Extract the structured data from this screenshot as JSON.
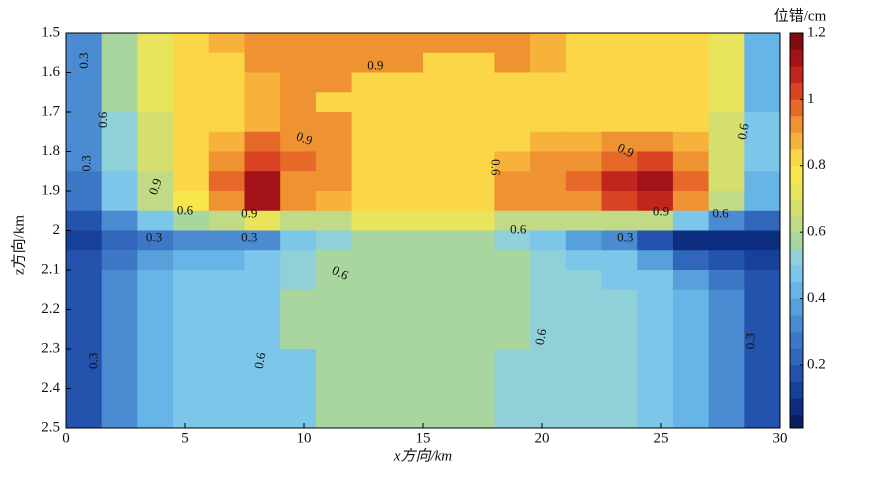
{
  "chart_data": {
    "type": "contour",
    "xlabel": "x方向/km",
    "ylabel": "z方向/km",
    "colorbar_label": "位错/cm",
    "xlim": [
      0,
      30
    ],
    "xticks": [
      0,
      5,
      10,
      15,
      20,
      25,
      30
    ],
    "ylim": [
      1.5,
      2.5
    ],
    "yticks": [
      1.5,
      1.6,
      1.7,
      1.8,
      1.9,
      2,
      2.1,
      2.2,
      2.3,
      2.4,
      2.5
    ],
    "y_inverted": true,
    "clim": [
      0.01,
      1.2
    ],
    "cticks": [
      0.2,
      0.4,
      0.6,
      0.8,
      1,
      1.2
    ],
    "levels": [
      0,
      0.05,
      0.1,
      0.15,
      0.2,
      0.25,
      0.3,
      0.35,
      0.4,
      0.45,
      0.5,
      0.55,
      0.6,
      0.65,
      0.7,
      0.75,
      0.8,
      0.85,
      0.9,
      0.95,
      1,
      1.05,
      1.1,
      1.15,
      1.2
    ],
    "colors": [
      "#08215e",
      "#0c2d80",
      "#17409a",
      "#2453ad",
      "#3266bb",
      "#3d78c6",
      "#4a8bd1",
      "#58a0dc",
      "#67b5e6",
      "#7cc6ea",
      "#90d0d8",
      "#a9d59e",
      "#c0da86",
      "#d4df6e",
      "#e8e45c",
      "#f8e64c",
      "#fbd646",
      "#f7b23c",
      "#ef9232",
      "#e6692a",
      "#d84323",
      "#c2251d",
      "#a31218",
      "#800c12"
    ],
    "x": [
      0.75,
      2.25,
      3.75,
      5.25,
      6.75,
      8.25,
      9.75,
      11.25,
      12.75,
      14.25,
      15.75,
      17.25,
      18.75,
      20.25,
      21.75,
      23.25,
      24.75,
      26.25,
      27.75,
      29.25
    ],
    "y": [
      1.525,
      1.575,
      1.625,
      1.675,
      1.725,
      1.775,
      1.825,
      1.875,
      1.925,
      1.975,
      2.025,
      2.075,
      2.125,
      2.175,
      2.225,
      2.275,
      2.325,
      2.375,
      2.425,
      2.475
    ],
    "z": [
      [
        0.3,
        0.55,
        0.72,
        0.82,
        0.88,
        0.92,
        0.92,
        0.92,
        0.92,
        0.92,
        0.92,
        0.92,
        0.92,
        0.88,
        0.82,
        0.82,
        0.82,
        0.8,
        0.7,
        0.4
      ],
      [
        0.3,
        0.55,
        0.72,
        0.82,
        0.82,
        0.92,
        0.92,
        0.92,
        0.92,
        0.92,
        0.82,
        0.82,
        0.92,
        0.88,
        0.82,
        0.82,
        0.82,
        0.8,
        0.7,
        0.4
      ],
      [
        0.3,
        0.55,
        0.72,
        0.82,
        0.82,
        0.88,
        0.92,
        0.92,
        0.82,
        0.82,
        0.82,
        0.82,
        0.82,
        0.82,
        0.82,
        0.82,
        0.82,
        0.8,
        0.7,
        0.4
      ],
      [
        0.3,
        0.55,
        0.72,
        0.82,
        0.82,
        0.88,
        0.92,
        0.82,
        0.82,
        0.82,
        0.82,
        0.82,
        0.82,
        0.82,
        0.82,
        0.82,
        0.82,
        0.8,
        0.7,
        0.4
      ],
      [
        0.3,
        0.5,
        0.68,
        0.82,
        0.82,
        0.88,
        0.92,
        0.92,
        0.82,
        0.82,
        0.82,
        0.82,
        0.82,
        0.82,
        0.82,
        0.82,
        0.82,
        0.8,
        0.68,
        0.45
      ],
      [
        0.3,
        0.5,
        0.68,
        0.8,
        0.88,
        0.95,
        0.92,
        0.92,
        0.82,
        0.82,
        0.82,
        0.82,
        0.82,
        0.88,
        0.88,
        0.92,
        0.92,
        0.85,
        0.68,
        0.45
      ],
      [
        0.3,
        0.5,
        0.65,
        0.82,
        0.92,
        1.02,
        0.95,
        0.92,
        0.82,
        0.82,
        0.82,
        0.82,
        0.88,
        0.92,
        0.92,
        0.98,
        1.02,
        0.92,
        0.65,
        0.45
      ],
      [
        0.28,
        0.48,
        0.62,
        0.8,
        0.95,
        1.1,
        0.92,
        0.92,
        0.82,
        0.82,
        0.82,
        0.82,
        0.92,
        0.92,
        0.95,
        1.08,
        1.1,
        0.95,
        0.65,
        0.42
      ],
      [
        0.25,
        0.45,
        0.6,
        0.75,
        0.9,
        1.12,
        0.9,
        0.88,
        0.82,
        0.82,
        0.82,
        0.82,
        0.9,
        0.9,
        0.92,
        1.02,
        1.05,
        0.9,
        0.62,
        0.4
      ],
      [
        0.15,
        0.3,
        0.45,
        0.55,
        0.62,
        0.7,
        0.62,
        0.6,
        0.7,
        0.72,
        0.72,
        0.7,
        0.62,
        0.6,
        0.62,
        0.62,
        0.6,
        0.45,
        0.3,
        0.2
      ],
      [
        0.1,
        0.2,
        0.25,
        0.3,
        0.32,
        0.32,
        0.45,
        0.5,
        0.55,
        0.55,
        0.55,
        0.55,
        0.5,
        0.45,
        0.38,
        0.3,
        0.15,
        0.05,
        0.05,
        0.05
      ],
      [
        0.15,
        0.28,
        0.38,
        0.42,
        0.42,
        0.45,
        0.5,
        0.55,
        0.57,
        0.57,
        0.57,
        0.57,
        0.55,
        0.52,
        0.48,
        0.45,
        0.35,
        0.22,
        0.15,
        0.1
      ],
      [
        0.15,
        0.3,
        0.4,
        0.45,
        0.45,
        0.47,
        0.53,
        0.57,
        0.57,
        0.57,
        0.57,
        0.57,
        0.57,
        0.52,
        0.52,
        0.48,
        0.45,
        0.38,
        0.28,
        0.15
      ],
      [
        0.15,
        0.3,
        0.42,
        0.47,
        0.47,
        0.47,
        0.57,
        0.57,
        0.57,
        0.57,
        0.57,
        0.57,
        0.57,
        0.52,
        0.52,
        0.52,
        0.47,
        0.42,
        0.3,
        0.15
      ],
      [
        0.15,
        0.3,
        0.42,
        0.47,
        0.47,
        0.47,
        0.57,
        0.57,
        0.57,
        0.57,
        0.57,
        0.57,
        0.57,
        0.52,
        0.52,
        0.52,
        0.47,
        0.42,
        0.3,
        0.15
      ],
      [
        0.15,
        0.3,
        0.42,
        0.47,
        0.47,
        0.47,
        0.57,
        0.57,
        0.57,
        0.57,
        0.57,
        0.57,
        0.57,
        0.52,
        0.52,
        0.52,
        0.47,
        0.42,
        0.3,
        0.15
      ],
      [
        0.15,
        0.3,
        0.42,
        0.47,
        0.47,
        0.47,
        0.47,
        0.57,
        0.57,
        0.57,
        0.57,
        0.57,
        0.52,
        0.52,
        0.52,
        0.52,
        0.47,
        0.42,
        0.3,
        0.15
      ],
      [
        0.15,
        0.3,
        0.42,
        0.47,
        0.47,
        0.47,
        0.47,
        0.57,
        0.57,
        0.57,
        0.57,
        0.57,
        0.52,
        0.52,
        0.52,
        0.52,
        0.47,
        0.42,
        0.3,
        0.15
      ],
      [
        0.15,
        0.3,
        0.42,
        0.47,
        0.47,
        0.47,
        0.47,
        0.57,
        0.57,
        0.57,
        0.57,
        0.57,
        0.52,
        0.52,
        0.52,
        0.52,
        0.47,
        0.42,
        0.3,
        0.15
      ],
      [
        0.15,
        0.3,
        0.42,
        0.47,
        0.47,
        0.47,
        0.47,
        0.57,
        0.57,
        0.57,
        0.57,
        0.57,
        0.52,
        0.52,
        0.52,
        0.52,
        0.47,
        0.42,
        0.3,
        0.15
      ]
    ],
    "contour_labels": [
      0.3,
      0.6,
      0.3,
      0.9,
      0.9,
      0.9,
      0.9,
      0.6,
      0.3,
      0.3,
      0.6,
      0.6,
      0.6,
      0.9,
      0.9,
      0.6,
      0.3,
      0.6,
      0.6,
      0.3,
      0.3,
      0.6
    ]
  }
}
